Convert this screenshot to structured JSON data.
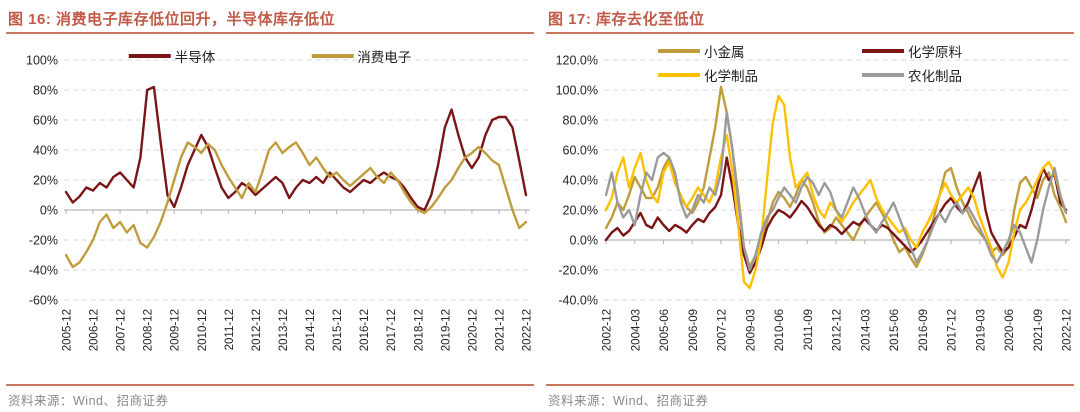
{
  "figures": [
    {
      "title": "图 16: 消费电子库存低位回升，半导体库存低位",
      "source": "资料来源：Wind、招商证券"
    },
    {
      "title": "图 17: 库存去化至低位",
      "source": "资料来源：Wind、招商证券"
    }
  ],
  "colors": {
    "maroon": "#7a1518",
    "dark_gold": "#bf9d3c",
    "bright_gold": "#ffc000",
    "gray": "#9b9b9b",
    "title_accent": "#c05a49",
    "rule": "#c97b62",
    "grid": "#d9d9d9",
    "axis": "#b7b7b7"
  },
  "chart_data": [
    {
      "type": "line",
      "title": "消费电子库存低位回升，半导体库存低位",
      "x_unit": "quarterly from 2005-12 to 2022-12",
      "ylim": [
        -60,
        100
      ],
      "y_step": 20,
      "grid": "dashed horizontal",
      "legend_position": "top-center single row",
      "y_ticks": [
        100,
        80,
        60,
        40,
        20,
        0,
        -20,
        -40,
        -60
      ],
      "y_tick_labels": [
        "100%",
        "80%",
        "60%",
        "40%",
        "20%",
        "0%",
        "-20%",
        "-40%",
        "-60%"
      ],
      "x_tick_step": 4,
      "x_tick_labels": [
        "2005-12",
        "2006-12",
        "2007-12",
        "2008-12",
        "2009-12",
        "2010-12",
        "2011-12",
        "2012-12",
        "2013-12",
        "2014-12",
        "2015-12",
        "2016-12",
        "2017-12",
        "2018-12",
        "2019-12",
        "2020-12",
        "2021-12",
        "2022-12"
      ],
      "series": [
        {
          "name": "半导体",
          "color": "#7a1518",
          "values": [
            12,
            5,
            9,
            15,
            13,
            18,
            15,
            22,
            25,
            20,
            15,
            35,
            80,
            82,
            45,
            10,
            2,
            15,
            30,
            40,
            50,
            42,
            28,
            15,
            8,
            12,
            18,
            15,
            10,
            14,
            18,
            22,
            18,
            8,
            15,
            20,
            18,
            22,
            18,
            25,
            20,
            15,
            12,
            16,
            20,
            18,
            22,
            25,
            22,
            20,
            15,
            8,
            2,
            0,
            10,
            30,
            55,
            67,
            50,
            35,
            28,
            35,
            50,
            60,
            62,
            62,
            55,
            33,
            10
          ]
        },
        {
          "name": "消费电子",
          "color": "#bf9d3c",
          "values": [
            -30,
            -38,
            -35,
            -28,
            -20,
            -8,
            -3,
            -12,
            -8,
            -15,
            -10,
            -22,
            -25,
            -18,
            -8,
            5,
            20,
            35,
            45,
            42,
            38,
            44,
            40,
            30,
            22,
            15,
            8,
            18,
            12,
            25,
            40,
            45,
            38,
            42,
            45,
            38,
            30,
            35,
            28,
            22,
            25,
            20,
            16,
            20,
            24,
            28,
            22,
            18,
            25,
            20,
            12,
            5,
            0,
            -2,
            2,
            8,
            15,
            20,
            28,
            35,
            38,
            42,
            38,
            33,
            30,
            15,
            0,
            -12,
            -8
          ]
        }
      ]
    },
    {
      "type": "line",
      "title": "库存去化至低位",
      "x_unit": "quarterly from 2002-12 to 2022-12",
      "ylim": [
        -40,
        120
      ],
      "y_step": 20,
      "grid": "dashed horizontal",
      "legend_position": "top-center 2x2 grid",
      "y_ticks": [
        120,
        100,
        80,
        60,
        40,
        20,
        0,
        -20,
        -40
      ],
      "y_tick_labels": [
        "120.0%",
        "100.0%",
        "80.0%",
        "60.0%",
        "40.0%",
        "20.0%",
        "0.0%",
        "-20.0%",
        "-40.0%"
      ],
      "x_tick_step": 5,
      "x_tick_labels": [
        "2002-12",
        "2004-03",
        "2005-06",
        "2006-09",
        "2007-12",
        "2009-03",
        "2010-06",
        "2011-09",
        "2012-12",
        "2014-03",
        "2015-06",
        "2016-09",
        "2017-12",
        "2019-03",
        "2020-06",
        "2021-09",
        "2022-12"
      ],
      "series": [
        {
          "name": "小金属",
          "color": "#bf9d3c",
          "values": [
            8,
            15,
            25,
            20,
            30,
            42,
            35,
            28,
            28,
            35,
            48,
            55,
            40,
            28,
            22,
            18,
            25,
            35,
            55,
            75,
            102,
            85,
            60,
            30,
            -5,
            -18,
            -10,
            0,
            12,
            25,
            32,
            28,
            22,
            30,
            40,
            35,
            25,
            12,
            5,
            8,
            15,
            10,
            5,
            0,
            8,
            15,
            20,
            25,
            18,
            10,
            0,
            -8,
            -5,
            -12,
            -18,
            -10,
            0,
            15,
            30,
            45,
            48,
            35,
            25,
            18,
            10,
            5,
            0,
            -8,
            -5,
            -10,
            -5,
            20,
            38,
            42,
            35,
            28,
            40,
            45,
            30,
            22,
            12
          ]
        },
        {
          "name": "化学原料",
          "color": "#7a1518",
          "values": [
            0,
            5,
            8,
            3,
            6,
            12,
            18,
            10,
            8,
            15,
            10,
            6,
            10,
            8,
            5,
            10,
            14,
            12,
            18,
            22,
            30,
            55,
            35,
            10,
            -10,
            -22,
            -15,
            -5,
            8,
            15,
            20,
            18,
            15,
            20,
            26,
            22,
            16,
            10,
            6,
            10,
            8,
            4,
            8,
            12,
            10,
            14,
            10,
            6,
            10,
            8,
            4,
            0,
            -4,
            -8,
            -5,
            0,
            6,
            12,
            18,
            24,
            28,
            22,
            18,
            25,
            35,
            45,
            20,
            5,
            -2,
            -8,
            -5,
            2,
            10,
            8,
            20,
            35,
            48,
            40,
            44,
            25,
            20
          ]
        },
        {
          "name": "化学制品",
          "color": "#ffc000",
          "values": [
            20,
            28,
            45,
            55,
            35,
            48,
            58,
            40,
            30,
            25,
            45,
            52,
            38,
            30,
            22,
            28,
            35,
            30,
            25,
            35,
            55,
            70,
            45,
            10,
            -28,
            -32,
            -20,
            0,
            40,
            78,
            96,
            90,
            55,
            35,
            40,
            45,
            30,
            20,
            15,
            25,
            20,
            12,
            18,
            25,
            30,
            35,
            40,
            28,
            20,
            15,
            10,
            5,
            8,
            0,
            -5,
            5,
            12,
            20,
            30,
            38,
            30,
            25,
            30,
            35,
            28,
            15,
            5,
            -5,
            -18,
            -25,
            -15,
            5,
            20,
            25,
            32,
            40,
            48,
            52,
            45,
            30,
            18
          ]
        },
        {
          "name": "农化制品",
          "color": "#9b9b9b",
          "values": [
            30,
            45,
            25,
            15,
            20,
            10,
            30,
            45,
            40,
            55,
            58,
            55,
            45,
            25,
            15,
            20,
            30,
            25,
            35,
            30,
            45,
            85,
            60,
            25,
            -5,
            -20,
            -10,
            5,
            15,
            20,
            28,
            35,
            30,
            25,
            35,
            42,
            38,
            30,
            38,
            32,
            20,
            15,
            25,
            35,
            28,
            18,
            10,
            5,
            12,
            18,
            25,
            15,
            5,
            -5,
            -15,
            -8,
            0,
            10,
            18,
            12,
            20,
            25,
            18,
            22,
            15,
            8,
            0,
            -10,
            -15,
            -8,
            0,
            10,
            5,
            -5,
            -15,
            0,
            20,
            35,
            48,
            30,
            18
          ]
        }
      ]
    }
  ]
}
